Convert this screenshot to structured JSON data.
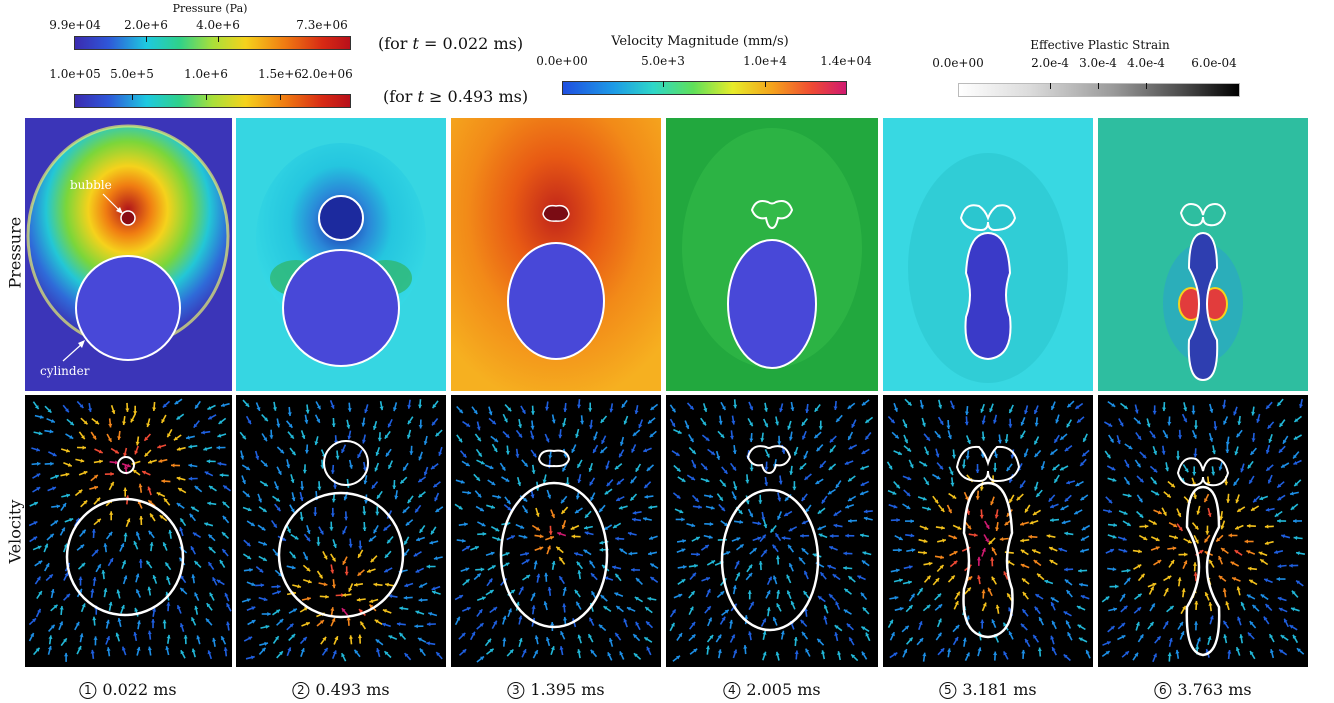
{
  "pressure_colorbar_top": {
    "title": "Pressure (Pa)",
    "ticks": [
      "9.9e+04",
      "2.0e+6",
      "4.0e+6",
      "7.3e+06"
    ],
    "note_prefix": "(for ",
    "note_var": "t",
    "note_suffix": " = 0.022 ms)"
  },
  "pressure_colorbar_bottom": {
    "ticks": [
      "1.0e+05",
      "5.0e+5",
      "1.0e+6",
      "1.5e+6",
      "2.0e+06"
    ],
    "note_prefix": "(for ",
    "note_var": "t",
    "note_suffix": " ≥ 0.493 ms)"
  },
  "velocity_colorbar": {
    "title": "Velocity Magnitude (mm/s)",
    "ticks": [
      "0.0e+00",
      "5.0e+3",
      "1.0e+4",
      "1.4e+04"
    ]
  },
  "strain_colorbar": {
    "title": "Effective Plastic Strain",
    "ticks": [
      "0.0e+00",
      "2.0e-4",
      "3.0e-4",
      "4.0e-4",
      "6.0e-04"
    ]
  },
  "row_labels": {
    "pressure": "Pressure",
    "velocity": "Velocity"
  },
  "annotations": {
    "bubble": "bubble",
    "cylinder": "cylinder"
  },
  "captions": [
    {
      "num": "1",
      "time": "0.022 ms"
    },
    {
      "num": "2",
      "time": "0.493 ms"
    },
    {
      "num": "3",
      "time": "1.395 ms"
    },
    {
      "num": "4",
      "time": "2.005 ms"
    },
    {
      "num": "5",
      "time": "3.181 ms"
    },
    {
      "num": "6",
      "time": "3.763 ms"
    }
  ],
  "colors": {
    "cylinder_fill": "#4848d8",
    "outline": "#ffffff",
    "velocity_bg": "#000000"
  }
}
